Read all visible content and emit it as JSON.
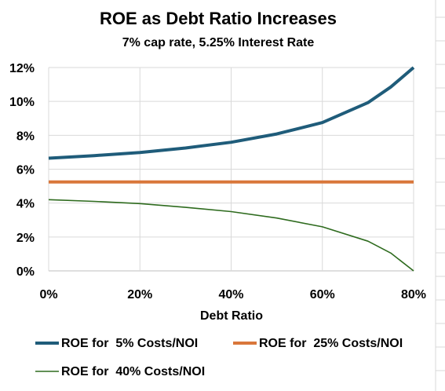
{
  "chart_data": {
    "type": "line",
    "title": "ROE as Debt Ratio Increases",
    "subtitle": "7% cap rate, 5.25% Interest Rate",
    "xlabel": "Debt Ratio",
    "ylabel": "",
    "x": [
      0,
      10,
      20,
      30,
      40,
      50,
      60,
      70,
      75,
      80
    ],
    "xlim": [
      0,
      80
    ],
    "ylim": [
      0,
      12
    ],
    "x_ticks": [
      "0%",
      "20%",
      "40%",
      "60%",
      "80%"
    ],
    "x_tick_values": [
      0,
      20,
      40,
      60,
      80
    ],
    "y_ticks": [
      "0%",
      "2%",
      "4%",
      "6%",
      "8%",
      "10%",
      "12%"
    ],
    "y_tick_values": [
      0,
      2,
      4,
      6,
      8,
      10,
      12
    ],
    "grid": "vertical-and-horizontal",
    "legend_position": "bottom",
    "series": [
      {
        "name": "ROE for  5% Costs/NOI",
        "color": "#1f5c7a",
        "values": [
          6.65,
          6.8,
          6.98,
          7.25,
          7.59,
          8.08,
          8.75,
          9.93,
          10.85,
          12.0
        ]
      },
      {
        "name": "ROE for  25% Costs/NOI",
        "color": "#d9773b",
        "values": [
          5.25,
          5.25,
          5.25,
          5.25,
          5.25,
          5.25,
          5.25,
          5.25,
          5.25,
          5.25
        ]
      },
      {
        "name": "ROE for  40% Costs/NOI",
        "color": "#2e6b1e",
        "values": [
          4.2,
          4.1,
          3.97,
          3.75,
          3.5,
          3.12,
          2.6,
          1.75,
          1.05,
          0.0
        ]
      }
    ]
  }
}
